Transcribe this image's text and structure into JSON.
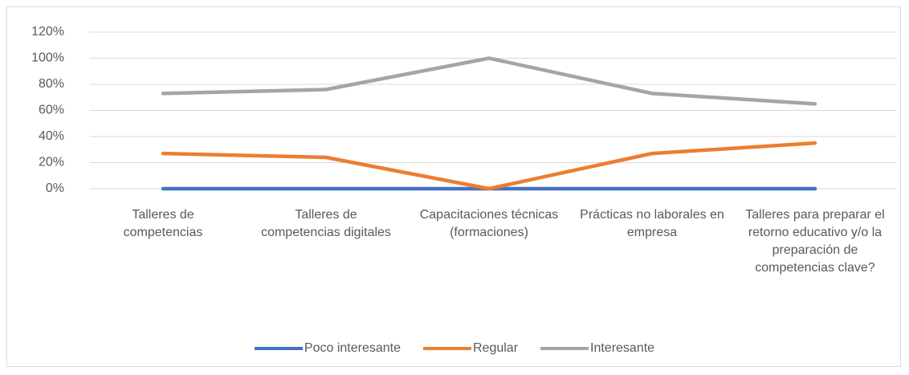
{
  "chart_data": {
    "type": "line",
    "categories": [
      "Talleres de competencias",
      "Talleres de competencias digitales",
      "Capacitaciones técnicas (formaciones)",
      "Prácticas no laborales en empresa",
      "Talleres para preparar el retorno educativo y/o la preparación de competencias clave?"
    ],
    "series": [
      {
        "name": "Poco interesante",
        "color": "#4472c4",
        "values": [
          0,
          0,
          0,
          0,
          0
        ]
      },
      {
        "name": "Regular",
        "color": "#ed7d31",
        "values": [
          27,
          24,
          0,
          27,
          35
        ]
      },
      {
        "name": "Interesante",
        "color": "#a5a5a5",
        "values": [
          73,
          76,
          100,
          73,
          65
        ]
      }
    ],
    "ylim": [
      0,
      120
    ],
    "yticks": [
      {
        "value": 0,
        "label": "0%"
      },
      {
        "value": 20,
        "label": "20%"
      },
      {
        "value": 40,
        "label": "40%"
      },
      {
        "value": 60,
        "label": "60%"
      },
      {
        "value": 80,
        "label": "80%"
      },
      {
        "value": 100,
        "label": "100%"
      },
      {
        "value": 120,
        "label": "120%"
      }
    ],
    "grid": true,
    "legend": "bottom"
  }
}
